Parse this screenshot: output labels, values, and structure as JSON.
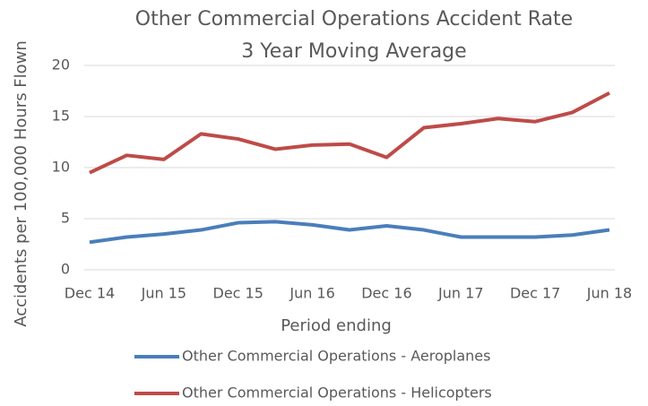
{
  "chart_data": {
    "type": "line",
    "title": "Other Commercial Operations Accident Rate",
    "subtitle": "3 Year Moving Average",
    "x_label": "Period ending",
    "y_label": "Accidents per 100,000 Hours Flown",
    "categories": [
      "Dec 14",
      null,
      "Jun 15",
      null,
      "Dec 15",
      null,
      "Jun 16",
      null,
      "Dec 16",
      null,
      "Jun 17",
      null,
      "Dec 17",
      null,
      "Jun 18"
    ],
    "series": [
      {
        "name": "Other Commercial Operations - Aeroplanes",
        "color": "#4a7ebb",
        "values": [
          2.7,
          3.2,
          3.5,
          3.9,
          4.6,
          4.7,
          4.4,
          3.9,
          4.3,
          3.9,
          3.2,
          3.2,
          3.2,
          3.4,
          3.9
        ]
      },
      {
        "name": "Other Commercial Operations - Helicopters",
        "color": "#be4b48",
        "values": [
          9.5,
          11.2,
          10.8,
          13.3,
          12.8,
          11.8,
          12.2,
          12.3,
          11.0,
          13.9,
          14.3,
          14.8,
          14.5,
          15.4,
          17.3
        ]
      }
    ],
    "ylim": [
      0,
      20
    ],
    "yticks": [
      0,
      5,
      10,
      15,
      20
    ],
    "grid": true,
    "legend": "bottom"
  }
}
